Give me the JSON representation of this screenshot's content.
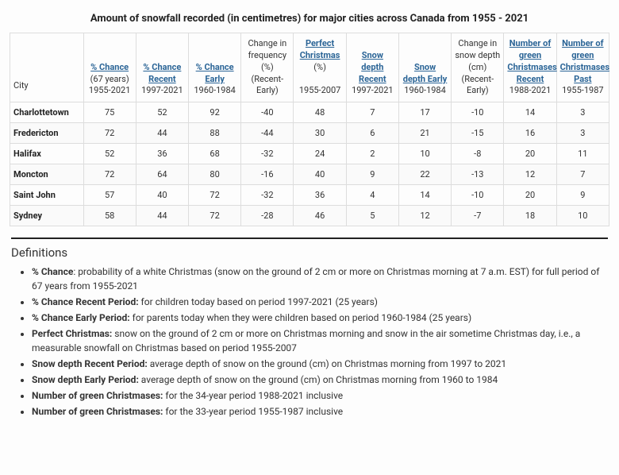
{
  "title": "Amount of snowfall recorded (in centimetres) for major cities across Canada from 1955 - 2021",
  "columns": [
    {
      "link": "",
      "sub": "City"
    },
    {
      "link": "% Chance",
      "sub": "(67 years) 1955-2021"
    },
    {
      "link": "% Chance Recent",
      "sub": "1997-2021"
    },
    {
      "link": "% Chance Early",
      "sub": "1960-1984"
    },
    {
      "link": "",
      "plain": "Change in frequency (%) (Recent-Early)"
    },
    {
      "link": "Perfect Christmas",
      "sub": "(%)",
      "sub2": "1955-2007"
    },
    {
      "link": "Snow depth Recent",
      "sub": "1997-2021"
    },
    {
      "link": "Snow depth Early",
      "sub": "1960-1984"
    },
    {
      "link": "",
      "plain": "Change in snow depth (cm) (Recent-Early)"
    },
    {
      "link": "Number of green Christmases Recent",
      "sub": "1988-2021"
    },
    {
      "link": "Number of green Christmases Past",
      "sub": "1955-1987"
    }
  ],
  "rows": [
    {
      "city": "Charlottetown",
      "v": [
        "75",
        "52",
        "92",
        "-40",
        "48",
        "7",
        "17",
        "-10",
        "14",
        "3"
      ]
    },
    {
      "city": "Fredericton",
      "v": [
        "72",
        "44",
        "88",
        "-44",
        "30",
        "6",
        "21",
        "-15",
        "16",
        "3"
      ]
    },
    {
      "city": "Halifax",
      "v": [
        "52",
        "36",
        "68",
        "-32",
        "24",
        "2",
        "10",
        "-8",
        "20",
        "11"
      ]
    },
    {
      "city": "Moncton",
      "v": [
        "72",
        "64",
        "80",
        "-16",
        "40",
        "9",
        "22",
        "-13",
        "12",
        "7"
      ]
    },
    {
      "city": "Saint John",
      "v": [
        "57",
        "40",
        "72",
        "-32",
        "36",
        "4",
        "14",
        "-10",
        "20",
        "9"
      ]
    },
    {
      "city": "Sydney",
      "v": [
        "58",
        "44",
        "72",
        "-28",
        "46",
        "5",
        "12",
        "-7",
        "18",
        "10"
      ]
    }
  ],
  "defs_title": "Definitions",
  "defs": [
    {
      "term": "% Chance",
      "text": ": probability of a white Christmas (snow on the ground of 2 cm or more on Christmas morning at 7 a.m. EST) for full period of 67 years from 1955-2021"
    },
    {
      "term": "% Chance Recent Period:",
      "text": " for children today based on period 1997-2021 (25 years)"
    },
    {
      "term": "% Chance Early Period:",
      "text": " for parents today when they were children based on period 1960-1984 (25 years)"
    },
    {
      "term": "Perfect Christmas:",
      "text": " snow on the ground of 2 cm or more on Christmas morning and snow in the air sometime Christmas day, i.e., a measurable snowfall on Christmas based on period 1955-2007"
    },
    {
      "term": "Snow depth Recent Period:",
      "text": " average depth of snow on the ground (cm) on Christmas morning from 1997 to 2021"
    },
    {
      "term": "Snow depth Early Period:",
      "text": " average depth of snow on the ground (cm) on Christmas morning from 1960 to 1984"
    },
    {
      "term": "Number of green Christmases:",
      "text": " for the 34-year period 1988-2021 inclusive"
    },
    {
      "term": "Number of green Christmases:",
      "text": " for the 33-year period 1955-1987 inclusive"
    }
  ]
}
